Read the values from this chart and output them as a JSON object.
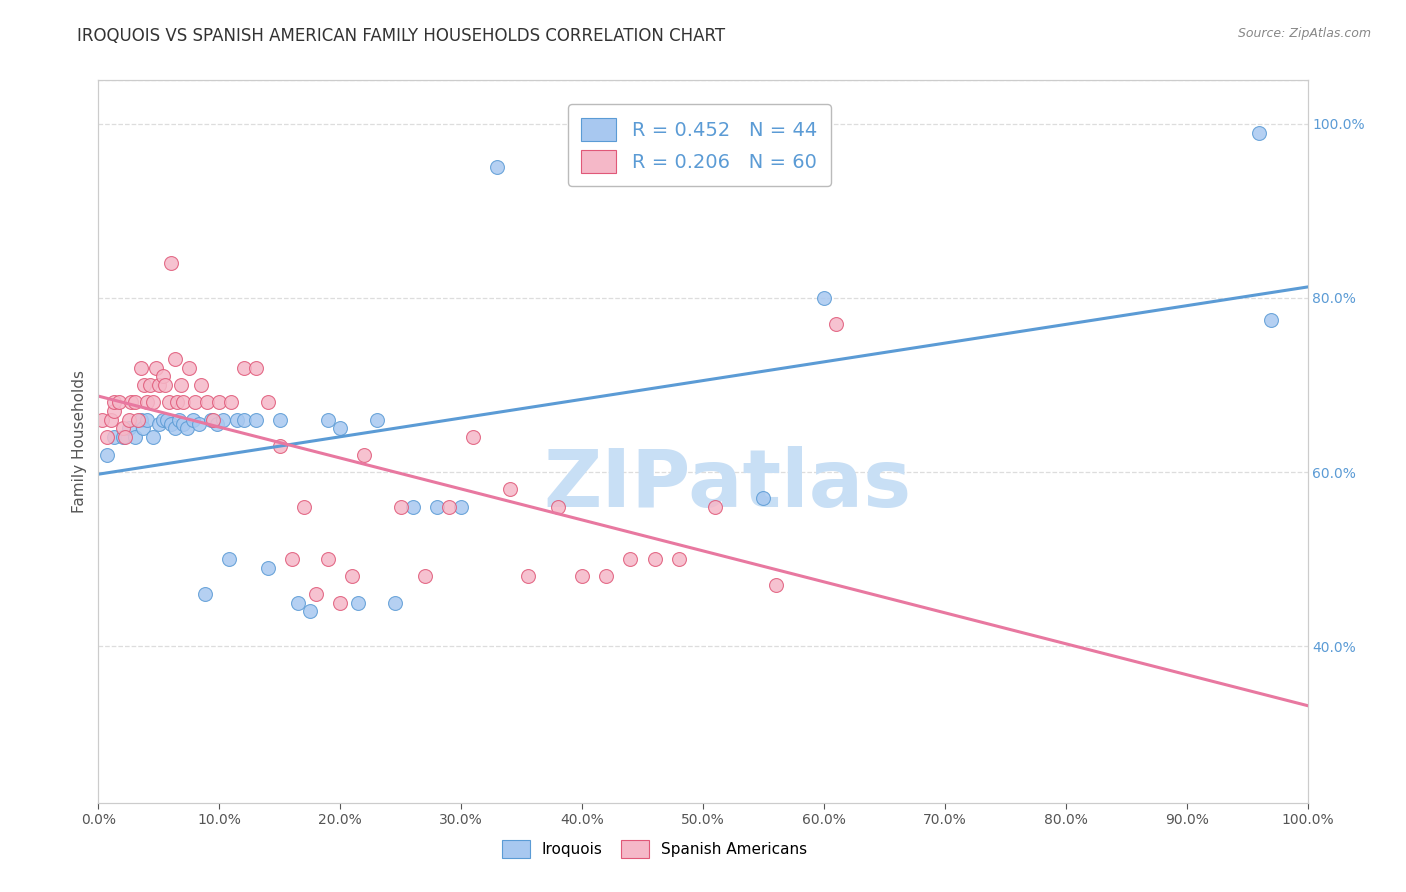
{
  "title": "IROQUOIS VS SPANISH AMERICAN FAMILY HOUSEHOLDS CORRELATION CHART",
  "source": "Source: ZipAtlas.com",
  "ylabel": "Family Households",
  "iroquois_color": "#A8C8F0",
  "iroquois_edge_color": "#5B9BD5",
  "spanish_color": "#F5B8C8",
  "spanish_edge_color": "#E05878",
  "iroquois_line_color": "#5B9BD5",
  "spanish_line_color": "#E878A0",
  "iroquois_R": 0.452,
  "iroquois_N": 44,
  "spanish_R": 0.206,
  "spanish_N": 60,
  "right_tick_color": "#5B9BD5",
  "title_color": "#333333",
  "source_color": "#888888",
  "watermark_color": "#C8DFF5",
  "grid_color": "#DDDDDD",
  "iroquois_x": [
    0.007,
    0.013,
    0.02,
    0.025,
    0.03,
    0.035,
    0.037,
    0.04,
    0.045,
    0.05,
    0.053,
    0.057,
    0.06,
    0.063,
    0.067,
    0.07,
    0.073,
    0.078,
    0.083,
    0.088,
    0.093,
    0.098,
    0.103,
    0.108,
    0.115,
    0.12,
    0.13,
    0.14,
    0.15,
    0.165,
    0.175,
    0.19,
    0.2,
    0.215,
    0.23,
    0.245,
    0.26,
    0.28,
    0.3,
    0.33,
    0.55,
    0.6,
    0.96,
    0.97
  ],
  "iroquois_y": [
    0.62,
    0.64,
    0.64,
    0.65,
    0.64,
    0.66,
    0.65,
    0.66,
    0.64,
    0.655,
    0.66,
    0.66,
    0.655,
    0.65,
    0.66,
    0.655,
    0.65,
    0.66,
    0.655,
    0.46,
    0.66,
    0.655,
    0.66,
    0.5,
    0.66,
    0.66,
    0.66,
    0.49,
    0.66,
    0.45,
    0.44,
    0.66,
    0.65,
    0.45,
    0.66,
    0.45,
    0.56,
    0.56,
    0.56,
    0.95,
    0.57,
    0.8,
    0.99,
    0.775
  ],
  "spanish_x": [
    0.003,
    0.007,
    0.01,
    0.013,
    0.013,
    0.017,
    0.02,
    0.022,
    0.025,
    0.027,
    0.03,
    0.033,
    0.035,
    0.038,
    0.04,
    0.043,
    0.045,
    0.048,
    0.05,
    0.053,
    0.055,
    0.058,
    0.06,
    0.063,
    0.065,
    0.068,
    0.07,
    0.075,
    0.08,
    0.085,
    0.09,
    0.095,
    0.1,
    0.11,
    0.12,
    0.13,
    0.14,
    0.15,
    0.16,
    0.17,
    0.18,
    0.19,
    0.2,
    0.21,
    0.22,
    0.25,
    0.27,
    0.29,
    0.31,
    0.34,
    0.355,
    0.38,
    0.4,
    0.42,
    0.44,
    0.46,
    0.48,
    0.51,
    0.56,
    0.61
  ],
  "spanish_y": [
    0.66,
    0.64,
    0.66,
    0.67,
    0.68,
    0.68,
    0.65,
    0.64,
    0.66,
    0.68,
    0.68,
    0.66,
    0.72,
    0.7,
    0.68,
    0.7,
    0.68,
    0.72,
    0.7,
    0.71,
    0.7,
    0.68,
    0.84,
    0.73,
    0.68,
    0.7,
    0.68,
    0.72,
    0.68,
    0.7,
    0.68,
    0.66,
    0.68,
    0.68,
    0.72,
    0.72,
    0.68,
    0.63,
    0.5,
    0.56,
    0.46,
    0.5,
    0.45,
    0.48,
    0.62,
    0.56,
    0.48,
    0.56,
    0.64,
    0.58,
    0.48,
    0.56,
    0.48,
    0.48,
    0.5,
    0.5,
    0.5,
    0.56,
    0.47,
    0.77
  ],
  "xlim": [
    0.0,
    1.0
  ],
  "ylim": [
    0.22,
    1.05
  ],
  "yticks_right": [
    0.4,
    0.6,
    0.8,
    1.0
  ],
  "ytick_labels_right": [
    "40.0%",
    "60.0%",
    "80.0%",
    "100.0%"
  ],
  "xticks": [
    0.0,
    0.1,
    0.2,
    0.3,
    0.4,
    0.5,
    0.6,
    0.7,
    0.8,
    0.9,
    1.0
  ],
  "xtick_labels": [
    "0.0%",
    "10.0%",
    "20.0%",
    "30.0%",
    "40.0%",
    "50.0%",
    "60.0%",
    "70.0%",
    "80.0%",
    "90.0%",
    "100.0%"
  ]
}
